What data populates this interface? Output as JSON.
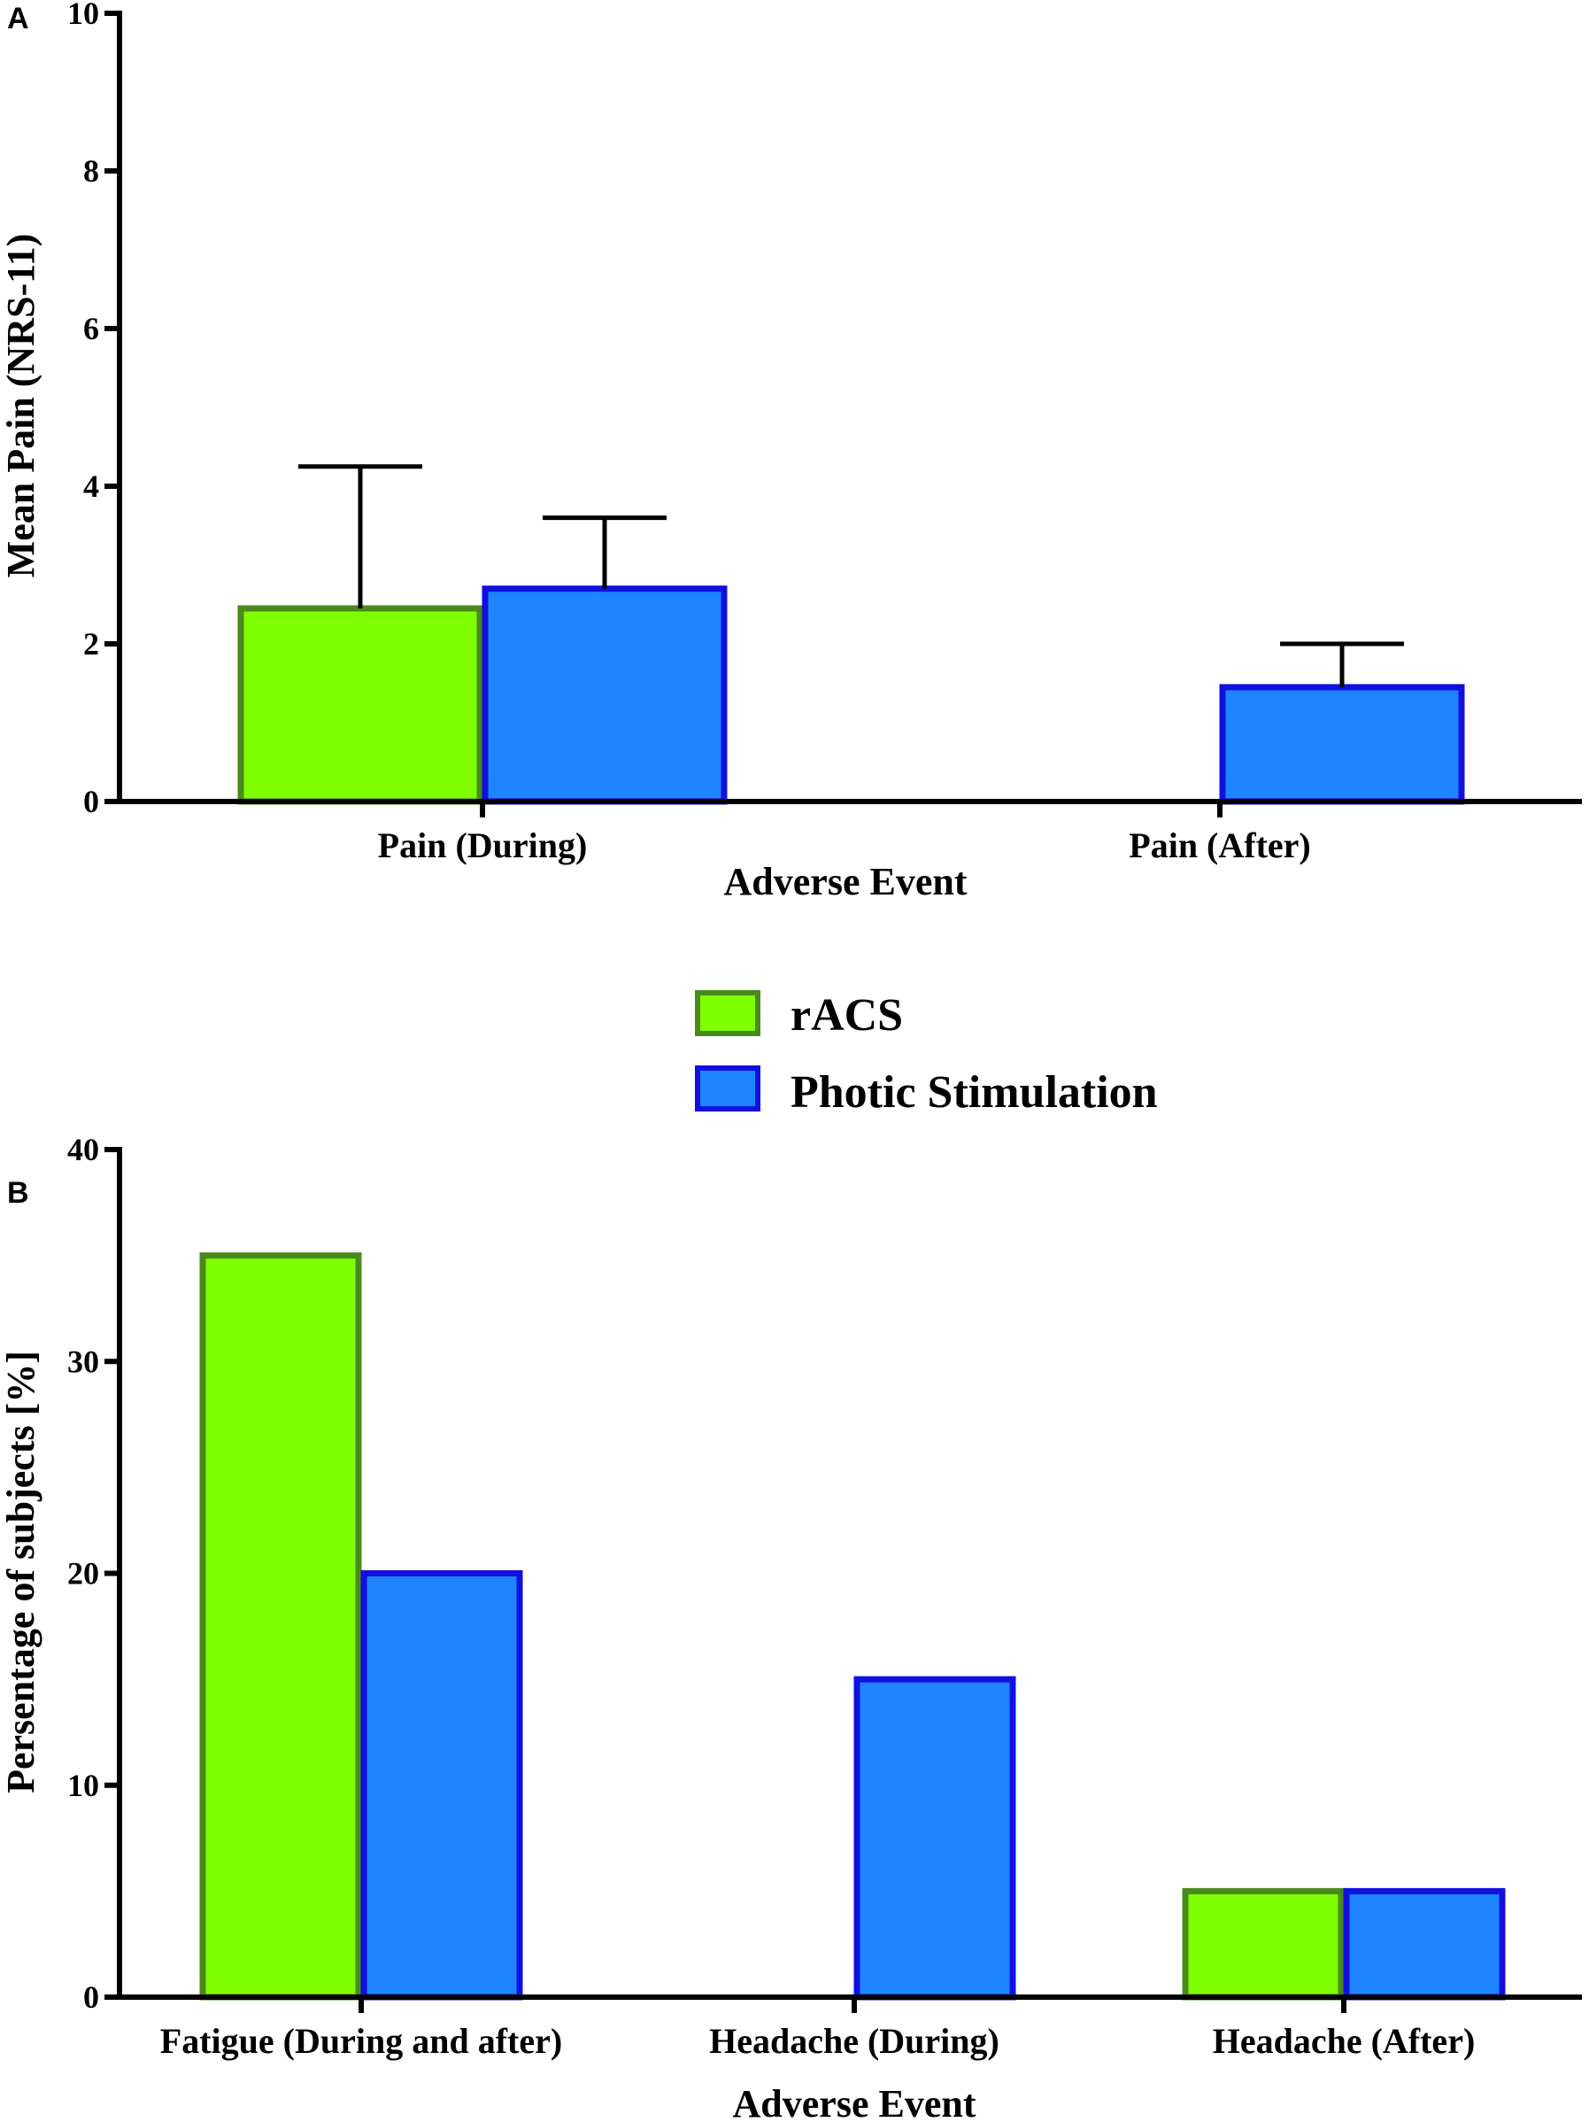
{
  "chart_data": [
    {
      "panel": "A",
      "type": "bar",
      "categories": [
        "Pain (During)",
        "Pain (After)"
      ],
      "series": [
        {
          "name": "rACS",
          "values": [
            2.45,
            null
          ],
          "errors": [
            1.8,
            null
          ]
        },
        {
          "name": "Photic Stimulation",
          "values": [
            2.7,
            1.45
          ],
          "errors": [
            0.9,
            0.55
          ]
        }
      ],
      "xlabel": "Adverse Event",
      "ylabel": "Mean Pain (NRS-11)",
      "ylim": [
        0,
        10
      ],
      "yticks": [
        0,
        2,
        4,
        6,
        8,
        10
      ]
    },
    {
      "panel": "B",
      "type": "bar",
      "categories": [
        "Fatigue (During and after)",
        "Headache (During)",
        "Headache (After)"
      ],
      "series": [
        {
          "name": "rACS",
          "values": [
            35,
            null,
            5
          ]
        },
        {
          "name": "Photic Stimulation",
          "values": [
            20,
            15,
            5
          ]
        }
      ],
      "xlabel": "Adverse Event",
      "ylabel": "Persentage of subjects [%]",
      "ylim": [
        0,
        40
      ],
      "yticks": [
        0,
        10,
        20,
        30,
        40
      ]
    }
  ],
  "legend": {
    "items": [
      {
        "label": "rACS",
        "fill": "#7fff00",
        "stroke": "#4a8a1c"
      },
      {
        "label": "Photic Stimulation",
        "fill": "#1e84ff",
        "stroke": "#1010e0"
      }
    ]
  },
  "colors": {
    "racs_fill": "#7fff00",
    "racs_stroke": "#4a8a1c",
    "photic_fill": "#1e84ff",
    "photic_stroke": "#1010e0"
  }
}
